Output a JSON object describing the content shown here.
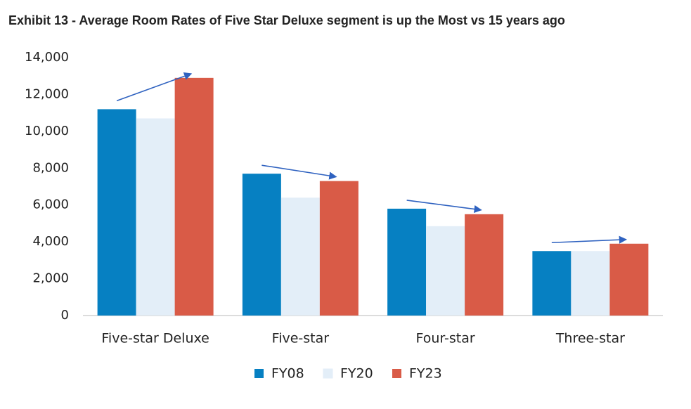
{
  "chart_data": {
    "type": "bar",
    "title": "Exhibit 13 - Average Room Rates of Five Star Deluxe segment is up the Most vs 15 years ago",
    "categories": [
      "Five-star Deluxe",
      "Five-star",
      "Four-star",
      "Three-star"
    ],
    "series": [
      {
        "name": "FY08",
        "color": "#0680c2",
        "values": [
          11200,
          7700,
          5800,
          3500
        ]
      },
      {
        "name": "FY20",
        "color": "#e3eef8",
        "values": [
          10700,
          6400,
          4850,
          3500
        ]
      },
      {
        "name": "FY23",
        "color": "#d95b47",
        "values": [
          12900,
          7300,
          5500,
          3900
        ]
      }
    ],
    "ylim": [
      0,
      14000
    ],
    "yticks": [
      0,
      {
        "value": 2000,
        "label": "2,000"
      },
      {
        "value": 4000,
        "label": "4,000"
      },
      {
        "value": 6000,
        "label": "6,000"
      },
      {
        "value": 8000,
        "label": "8,000"
      },
      {
        "value": 10000,
        "label": "10,000"
      },
      {
        "value": 12000,
        "label": "12,000"
      },
      {
        "value": 14000,
        "label": "14,000"
      }
    ],
    "grid": false,
    "legend": "bottom"
  }
}
